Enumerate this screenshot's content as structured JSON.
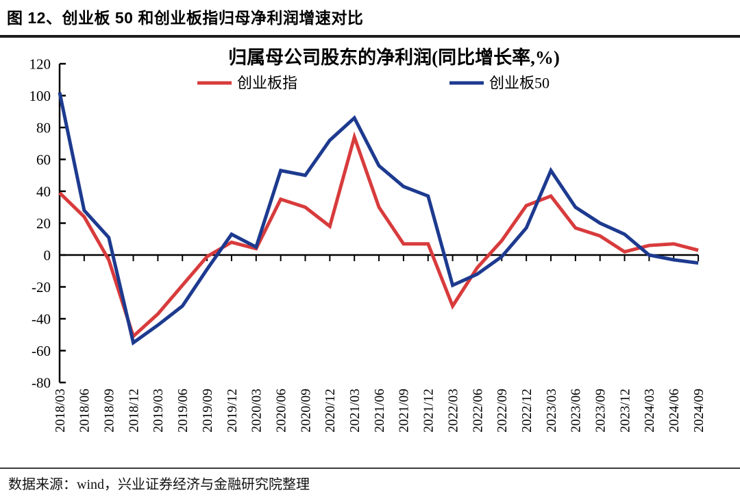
{
  "page": {
    "title": "图 12、创业板 50 和创业板指归母净利润增速对比",
    "footer": "数据来源：wind，兴业证券经济与金融研究院整理"
  },
  "chart_data": {
    "type": "line",
    "title": "归属母公司股东的净利润(同比增长率,%)",
    "categories": [
      "2018/03",
      "2018/06",
      "2018/09",
      "2018/12",
      "2019/03",
      "2019/06",
      "2019/09",
      "2019/12",
      "2020/03",
      "2020/06",
      "2020/09",
      "2020/12",
      "2021/03",
      "2021/06",
      "2021/09",
      "2021/12",
      "2022/03",
      "2022/06",
      "2022/09",
      "2022/12",
      "2023/03",
      "2023/06",
      "2023/09",
      "2023/12",
      "2024/03",
      "2024/06",
      "2024/09"
    ],
    "series": [
      {
        "name": "创业板指",
        "color": "#d83b3c",
        "values": [
          39,
          24,
          -3,
          -51,
          -37,
          -19,
          -1,
          8,
          4,
          35,
          30,
          18,
          74,
          30,
          7,
          7,
          -32,
          -8,
          9,
          31,
          37,
          17,
          12,
          2,
          6,
          7,
          3
        ]
      },
      {
        "name": "创业板50",
        "color": "#1d3a8f",
        "values": [
          102,
          28,
          11,
          -55,
          -44,
          -32,
          -9,
          13,
          5,
          53,
          50,
          72,
          86,
          56,
          43,
          37,
          -19,
          -12,
          -1,
          17,
          53,
          30,
          20,
          13,
          0,
          -3,
          -5
        ]
      }
    ],
    "ylabel": "",
    "xlabel": "",
    "ylim": [
      -80,
      120
    ],
    "ytick_step": 20,
    "grid": false,
    "legend_position": "top",
    "axis_color": "#000000"
  }
}
